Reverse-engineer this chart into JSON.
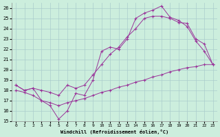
{
  "xlabel": "Windchill (Refroidissement éolien,°C)",
  "bg_color": "#cceedd",
  "grid_color": "#aacccc",
  "line_color": "#993399",
  "xlim": [
    -0.5,
    23.5
  ],
  "ylim": [
    15,
    26.5
  ],
  "yticks": [
    15,
    16,
    17,
    18,
    19,
    20,
    21,
    22,
    23,
    24,
    25,
    26
  ],
  "xticks": [
    0,
    1,
    2,
    3,
    4,
    5,
    6,
    7,
    8,
    9,
    10,
    11,
    12,
    13,
    14,
    15,
    16,
    17,
    18,
    19,
    20,
    21,
    22,
    23
  ],
  "series": [
    {
      "x": [
        0,
        1,
        2,
        3,
        4,
        5,
        6,
        7,
        8,
        9,
        10,
        11,
        12,
        13,
        14,
        15,
        16,
        17,
        18,
        19,
        20,
        21,
        22,
        23
      ],
      "y": [
        18.5,
        18.0,
        18.2,
        17.0,
        16.5,
        15.2,
        16.0,
        17.7,
        17.5,
        19.0,
        21.8,
        22.2,
        22.0,
        23.0,
        25.0,
        25.5,
        25.8,
        26.2,
        25.1,
        24.8,
        24.2,
        22.8,
        21.8,
        20.5
      ]
    },
    {
      "x": [
        0,
        1,
        2,
        3,
        4,
        5,
        6,
        7,
        8,
        9,
        10,
        11,
        12,
        13,
        14,
        15,
        16,
        17,
        18,
        19,
        20,
        21,
        22,
        23
      ],
      "y": [
        18.5,
        18.0,
        18.2,
        18.0,
        17.8,
        17.5,
        18.5,
        18.2,
        18.5,
        19.5,
        20.5,
        21.5,
        22.2,
        23.2,
        24.0,
        25.0,
        25.2,
        25.2,
        25.0,
        24.6,
        24.5,
        23.0,
        22.5,
        20.5
      ]
    },
    {
      "x": [
        0,
        1,
        2,
        3,
        4,
        5,
        6,
        7,
        8,
        9,
        10,
        11,
        12,
        13,
        14,
        15,
        16,
        17,
        18,
        19,
        20,
        21,
        22,
        23
      ],
      "y": [
        18.0,
        17.8,
        17.5,
        17.0,
        16.8,
        16.5,
        16.8,
        17.0,
        17.2,
        17.5,
        17.8,
        18.0,
        18.3,
        18.5,
        18.8,
        19.0,
        19.3,
        19.5,
        19.8,
        20.0,
        20.2,
        20.3,
        20.5,
        20.5
      ]
    }
  ]
}
